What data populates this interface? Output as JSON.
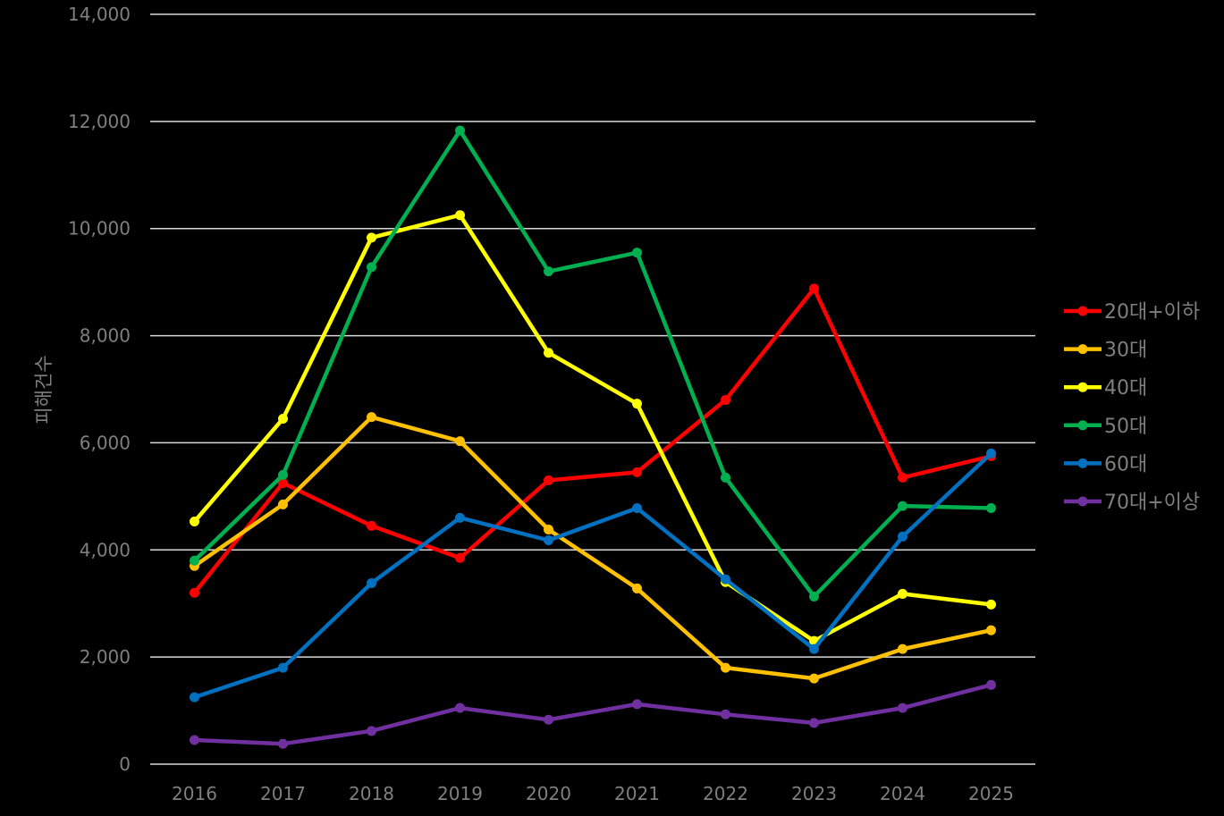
{
  "chart_data": {
    "type": "line",
    "title": "",
    "xlabel": "",
    "ylabel": "피해건수",
    "ylim": [
      0,
      14000
    ],
    "yticks": [
      0,
      2000,
      4000,
      6000,
      8000,
      10000,
      12000,
      14000
    ],
    "ytick_labels": [
      "0",
      "2,000",
      "4,000",
      "6,000",
      "8,000",
      "10,000",
      "12,000",
      "14,000"
    ],
    "categories": [
      "2016",
      "2017",
      "2018",
      "2019",
      "2020",
      "2021",
      "2022",
      "2023",
      "2024",
      "2025"
    ],
    "grid": true,
    "legend_position": "right",
    "series": [
      {
        "name": "20대+이하",
        "color": "#ff0000",
        "values": [
          3200,
          5250,
          4450,
          3850,
          5300,
          5450,
          6800,
          8880,
          5350,
          5750
        ]
      },
      {
        "name": "30대",
        "color": "#ffc000",
        "values": [
          3700,
          4850,
          6480,
          6030,
          4380,
          3280,
          1800,
          1600,
          2150,
          2500
        ]
      },
      {
        "name": "40대",
        "color": "#ffff00",
        "values": [
          4530,
          6450,
          9830,
          10250,
          7680,
          6730,
          3400,
          2300,
          3180,
          2980
        ]
      },
      {
        "name": "50대",
        "color": "#00b050",
        "values": [
          3800,
          5400,
          9280,
          11830,
          9200,
          9550,
          5350,
          3130,
          4820,
          4780
        ]
      },
      {
        "name": "60대",
        "color": "#0070c0",
        "values": [
          1250,
          1800,
          3380,
          4600,
          4180,
          4780,
          3450,
          2150,
          4250,
          5800
        ]
      },
      {
        "name": "70대+이상",
        "color": "#7030a0",
        "values": [
          450,
          380,
          620,
          1050,
          830,
          1120,
          930,
          770,
          1050,
          1480
        ]
      }
    ]
  }
}
